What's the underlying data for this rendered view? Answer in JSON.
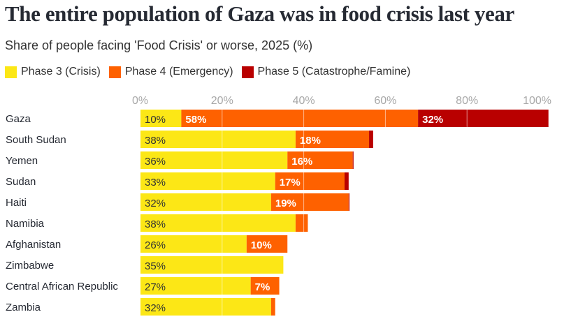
{
  "header": {
    "title": "The entire population of Gaza was in food crisis last year",
    "subtitle": "Share of people facing 'Food Crisis' or worse, 2025 (%)"
  },
  "legend": [
    {
      "label": "Phase 3 (Crisis)",
      "color": "#FCE716"
    },
    {
      "label": "Phase 4 (Emergency)",
      "color": "#FE6100"
    },
    {
      "label": "Phase 5 (Catastrophe/Famine)",
      "color": "#B90000"
    }
  ],
  "chart_data": {
    "type": "bar",
    "orientation": "horizontal",
    "stacked": true,
    "title": "The entire population of Gaza was in food crisis last year",
    "subtitle": "Share of people facing 'Food Crisis' or worse, 2025 (%)",
    "xlabel": "",
    "ylabel": "",
    "xlim": [
      0,
      100
    ],
    "x_ticks": [
      0,
      20,
      40,
      60,
      80,
      100
    ],
    "x_tick_labels": [
      "0%",
      "20%",
      "40%",
      "60%",
      "80%",
      "100%"
    ],
    "grid": true,
    "legend_position": "top-left",
    "categories": [
      "Gaza",
      "South Sudan",
      "Yemen",
      "Sudan",
      "Haiti",
      "Namibia",
      "Afghanistan",
      "Zimbabwe",
      "Central African Republic",
      "Zambia"
    ],
    "series": [
      {
        "name": "Phase 3 (Crisis)",
        "color": "#FCE716",
        "label_color": "#333333",
        "values": [
          10,
          38,
          36,
          33,
          32,
          38,
          26,
          35,
          27,
          32
        ],
        "labels": [
          "10%",
          "38%",
          "36%",
          "33%",
          "32%",
          "38%",
          "26%",
          "35%",
          "27%",
          "32%"
        ]
      },
      {
        "name": "Phase 4 (Emergency)",
        "color": "#FE6100",
        "label_color": "#ffffff",
        "values": [
          58,
          18,
          16,
          17,
          19,
          3,
          10,
          0,
          7,
          1
        ],
        "labels": [
          "58%",
          "18%",
          "16%",
          "17%",
          "19%",
          "",
          "10%",
          "",
          "7%",
          ""
        ]
      },
      {
        "name": "Phase 5 (Catastrophe/Famine)",
        "color": "#B90000",
        "label_color": "#ffffff",
        "values": [
          32,
          1,
          0.2,
          1,
          0.2,
          0,
          0,
          0,
          0,
          0
        ],
        "labels": [
          "32%",
          "",
          "",
          "",
          "",
          "",
          "",
          "",
          "",
          ""
        ]
      }
    ]
  }
}
